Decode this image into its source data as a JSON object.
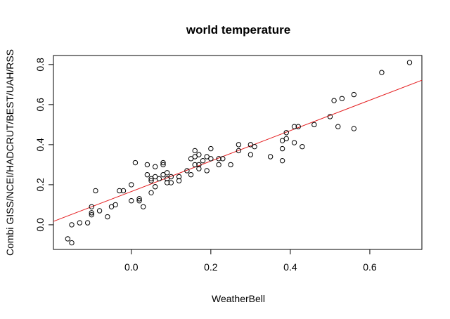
{
  "chart_data": {
    "type": "scatter",
    "title": "world temperature",
    "xlabel": "WeatherBell",
    "ylabel": "Combi GISS/NCEI/HADCRUT/BEST/UAH/RSS",
    "xlim": [
      -0.196,
      0.731
    ],
    "ylim": [
      -0.123,
      0.845
    ],
    "x_ticks": [
      0.0,
      0.2,
      0.4,
      0.6
    ],
    "x_tick_labels": [
      "0.0",
      "0.2",
      "0.4",
      "0.6"
    ],
    "y_ticks": [
      0.0,
      0.2,
      0.4,
      0.6,
      0.8
    ],
    "y_tick_labels": [
      "0.0",
      "0.2",
      "0.4",
      "0.6",
      "0.8"
    ],
    "grid": false,
    "marker": "open-circle",
    "point_color": "#000000",
    "fit_line": {
      "intercept": 0.166,
      "slope": 0.76,
      "color": "#e41a1c"
    },
    "points": [
      [
        -0.16,
        -0.07
      ],
      [
        -0.15,
        -0.09
      ],
      [
        -0.15,
        0.0
      ],
      [
        -0.13,
        0.01
      ],
      [
        -0.11,
        0.01
      ],
      [
        -0.1,
        0.05
      ],
      [
        -0.1,
        0.06
      ],
      [
        -0.1,
        0.09
      ],
      [
        -0.09,
        0.17
      ],
      [
        -0.08,
        0.07
      ],
      [
        -0.06,
        0.04
      ],
      [
        -0.05,
        0.09
      ],
      [
        -0.04,
        0.1
      ],
      [
        -0.03,
        0.17
      ],
      [
        -0.02,
        0.17
      ],
      [
        0.0,
        0.2
      ],
      [
        0.0,
        0.12
      ],
      [
        0.01,
        0.31
      ],
      [
        0.02,
        0.13
      ],
      [
        0.02,
        0.12
      ],
      [
        0.03,
        0.09
      ],
      [
        0.04,
        0.3
      ],
      [
        0.04,
        0.25
      ],
      [
        0.05,
        0.23
      ],
      [
        0.05,
        0.22
      ],
      [
        0.05,
        0.16
      ],
      [
        0.06,
        0.29
      ],
      [
        0.06,
        0.24
      ],
      [
        0.06,
        0.19
      ],
      [
        0.07,
        0.23
      ],
      [
        0.08,
        0.31
      ],
      [
        0.08,
        0.3
      ],
      [
        0.08,
        0.25
      ],
      [
        0.09,
        0.26
      ],
      [
        0.09,
        0.23
      ],
      [
        0.09,
        0.21
      ],
      [
        0.1,
        0.24
      ],
      [
        0.1,
        0.21
      ],
      [
        0.12,
        0.24
      ],
      [
        0.12,
        0.22
      ],
      [
        0.14,
        0.27
      ],
      [
        0.15,
        0.33
      ],
      [
        0.15,
        0.25
      ],
      [
        0.16,
        0.37
      ],
      [
        0.16,
        0.34
      ],
      [
        0.16,
        0.3
      ],
      [
        0.17,
        0.35
      ],
      [
        0.17,
        0.3
      ],
      [
        0.17,
        0.28
      ],
      [
        0.18,
        0.32
      ],
      [
        0.19,
        0.34
      ],
      [
        0.19,
        0.27
      ],
      [
        0.2,
        0.38
      ],
      [
        0.2,
        0.33
      ],
      [
        0.22,
        0.33
      ],
      [
        0.22,
        0.3
      ],
      [
        0.23,
        0.33
      ],
      [
        0.25,
        0.3
      ],
      [
        0.27,
        0.4
      ],
      [
        0.27,
        0.37
      ],
      [
        0.3,
        0.4
      ],
      [
        0.3,
        0.35
      ],
      [
        0.31,
        0.39
      ],
      [
        0.35,
        0.34
      ],
      [
        0.38,
        0.42
      ],
      [
        0.38,
        0.38
      ],
      [
        0.38,
        0.32
      ],
      [
        0.39,
        0.46
      ],
      [
        0.39,
        0.43
      ],
      [
        0.41,
        0.49
      ],
      [
        0.41,
        0.41
      ],
      [
        0.42,
        0.49
      ],
      [
        0.43,
        0.39
      ],
      [
        0.46,
        0.5
      ],
      [
        0.5,
        0.54
      ],
      [
        0.51,
        0.62
      ],
      [
        0.52,
        0.49
      ],
      [
        0.53,
        0.63
      ],
      [
        0.56,
        0.65
      ],
      [
        0.56,
        0.48
      ],
      [
        0.63,
        0.76
      ],
      [
        0.7,
        0.81
      ]
    ]
  }
}
